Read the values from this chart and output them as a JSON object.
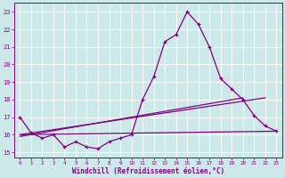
{
  "xlabel": "Windchill (Refroidissement éolien,°C)",
  "bg_color": "#cce8e8",
  "grid_color": "#ffffff",
  "line_color": "#800080",
  "yticks": [
    15,
    16,
    17,
    18,
    19,
    20,
    21,
    22,
    23
  ],
  "xticks": [
    0,
    1,
    2,
    3,
    4,
    5,
    6,
    7,
    8,
    9,
    10,
    11,
    12,
    13,
    14,
    15,
    16,
    17,
    18,
    19,
    20,
    21,
    22,
    23
  ],
  "xlim": [
    -0.5,
    23.5
  ],
  "ylim": [
    14.7,
    23.5
  ],
  "line1_x": [
    0,
    1,
    2,
    3,
    4,
    5,
    6,
    7,
    8,
    9,
    10,
    11,
    12,
    13,
    14,
    15,
    16,
    17,
    18,
    19,
    20,
    21,
    22,
    23
  ],
  "line1_y": [
    17.0,
    16.1,
    15.8,
    16.0,
    15.3,
    15.6,
    15.3,
    15.2,
    15.6,
    15.8,
    16.0,
    18.0,
    19.3,
    21.3,
    21.7,
    23.0,
    22.3,
    21.0,
    19.2,
    18.6,
    18.0,
    17.1,
    16.5,
    16.2
  ],
  "line2_x": [
    0,
    23
  ],
  "line2_y": [
    16.0,
    16.2
  ],
  "line3_x": [
    0,
    20
  ],
  "line3_y": [
    15.9,
    18.1
  ],
  "line4_x": [
    0,
    22
  ],
  "line4_y": [
    16.0,
    18.1
  ]
}
